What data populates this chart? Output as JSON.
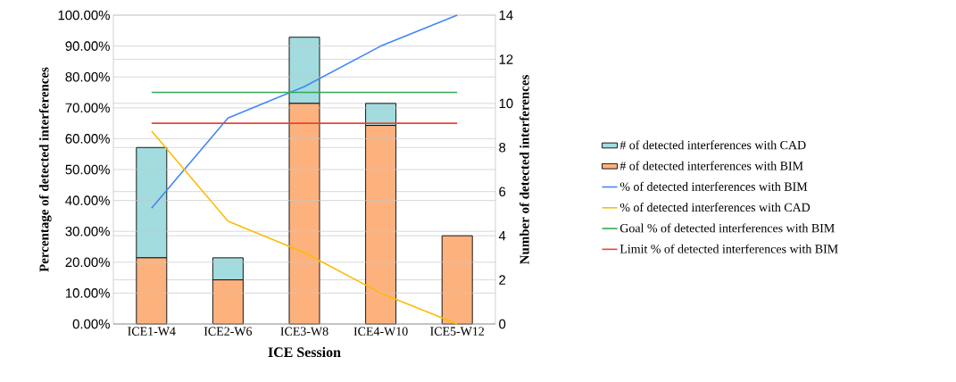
{
  "chart_data": {
    "type": "bar",
    "xlabel": "ICE Session",
    "ylabel": "Percentage of detected interferences",
    "y2label": "Number of detected interferences",
    "categories": [
      "ICE1-W4",
      "ICE2-W6",
      "ICE3-W8",
      "ICE4-W10",
      "ICE5-W12"
    ],
    "stacked": true,
    "grid": "y",
    "legend": "right",
    "ylim": [
      0,
      100
    ],
    "yticks": [
      {
        "value": 0,
        "label": "0.00%"
      },
      {
        "value": 10,
        "label": "10.00%"
      },
      {
        "value": 20,
        "label": "20.00%"
      },
      {
        "value": 30,
        "label": "30.00%"
      },
      {
        "value": 40,
        "label": "40.00%"
      },
      {
        "value": 50,
        "label": "50.00%"
      },
      {
        "value": 60,
        "label": "60.00%"
      },
      {
        "value": 70,
        "label": "70.00%"
      },
      {
        "value": 80,
        "label": "80.00%"
      },
      {
        "value": 90,
        "label": "90.00%"
      },
      {
        "value": 100,
        "label": "100.00%"
      }
    ],
    "y2lim": [
      0,
      14
    ],
    "y2ticks": [
      0,
      2,
      4,
      6,
      8,
      10,
      12,
      14
    ],
    "series": [
      {
        "name": "# of detected interferences with BIM",
        "axis": "y2",
        "color": "#fdb27e",
        "values": [
          3,
          2,
          10,
          9,
          4
        ]
      },
      {
        "name": "# of detected interferences with CAD",
        "axis": "y2",
        "color": "#a2dcdf",
        "values": [
          5,
          1,
          3,
          1,
          null
        ]
      },
      {
        "name": "% of detected interferences with BIM",
        "type": "line",
        "color": "#4286f4",
        "values": [
          37.5,
          66.7,
          76.9,
          90,
          100
        ]
      },
      {
        "name": "% of detected interferences with CAD",
        "type": "line",
        "color": "#fbbc04",
        "values": [
          62.5,
          33.3,
          23.1,
          10,
          0
        ]
      },
      {
        "name": "Goal % of detected interferences with BIM",
        "type": "line",
        "color": "#34a853",
        "values": [
          75,
          75,
          75,
          75,
          75
        ]
      },
      {
        "name": "Limit % of detected interferences with BIM",
        "type": "line",
        "color": "#ea4335",
        "values": [
          65,
          65,
          65,
          65,
          65
        ]
      }
    ]
  }
}
